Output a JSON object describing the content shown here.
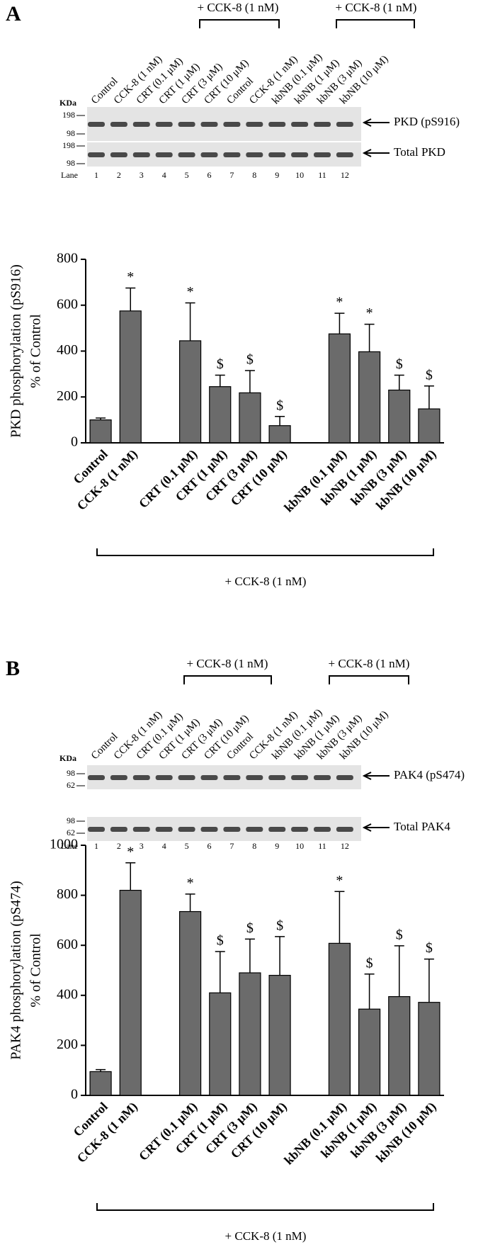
{
  "figure": {
    "panels": [
      {
        "label": "A",
        "blot": {
          "brackets": [
            "+ CCK-8 (1 nM)",
            "+ CCK-8 (1 nM)"
          ],
          "lanes": [
            "Control",
            "CCK-8 (1 nM)",
            "CRT (0.1 μM)",
            "CRT (1 μM)",
            "CRT (3 μM)",
            "CRT (10 μM)",
            "Control",
            "CCK-8 (1 nM)",
            "kbNB (0.1 μM)",
            "kbNB (1 μM)",
            "kbNB (3 μM)",
            "kbNB (10 μM)"
          ],
          "kda": "KDa",
          "rows": [
            {
              "label": "PKD (pS916)",
              "markers": [
                "198",
                "98"
              ]
            },
            {
              "label": "Total PKD",
              "markers": [
                "198",
                "98"
              ]
            }
          ],
          "lane_title": "Lane",
          "lane_numbers": [
            "1",
            "2",
            "3",
            "4",
            "5",
            "6",
            "7",
            "8",
            "9",
            "10",
            "11",
            "12"
          ]
        }
      },
      {
        "label": "B",
        "blot": {
          "brackets": [
            "+ CCK-8 (1 nM)",
            "+ CCK-8 (1 nM)"
          ],
          "lanes": [
            "Control",
            "CCK-8 (1 nM)",
            "CRT (0.1 μM)",
            "CRT (1 μM)",
            "CRT (3 μM)",
            "CRT (10 μM)",
            "Control",
            "CCK-8 (1 nM)",
            "kbNB (0.1 μM)",
            "kbNB (1 μM)",
            "kbNB (3 μM)",
            "kbNB (10 μM)"
          ],
          "kda": "KDa",
          "rows": [
            {
              "label": "PAK4 (pS474)",
              "markers": [
                "98",
                "62"
              ]
            },
            {
              "label": "Total PAK4",
              "markers": [
                "98",
                "62"
              ]
            }
          ],
          "lane_title": "Lane",
          "lane_numbers": [
            "1",
            "2",
            "3",
            "4",
            "5",
            "6",
            "7",
            "8",
            "9",
            "10",
            "11",
            "12"
          ]
        }
      }
    ]
  },
  "chart_data": [
    {
      "type": "bar",
      "y_label": [
        "PKD phosphorylation (pS916)",
        "% of Control"
      ],
      "categories": [
        "Control",
        "CCK-8 (1 nM)",
        null,
        "CRT (0.1 μM)",
        "CRT (1 μM)",
        "CRT (3 μM)",
        "CRT (10 μM)",
        null,
        "kbNB (0.1 μM)",
        "kbNB (1 μM)",
        "kbNB (3 μM)",
        "kbNB (10 μM)"
      ],
      "values": [
        100,
        575,
        null,
        445,
        245,
        218,
        75,
        null,
        475,
        397,
        230,
        148
      ],
      "errors": [
        8,
        100,
        null,
        165,
        50,
        97,
        40,
        null,
        90,
        120,
        65,
        100
      ],
      "annotations": [
        null,
        "*",
        null,
        "*",
        "$",
        "$",
        "$",
        null,
        "*",
        "*",
        "$",
        "$"
      ],
      "color": "#6b6b6b",
      "ylim": [
        0,
        800
      ],
      "yticks": [
        0,
        200,
        400,
        600,
        800
      ],
      "bracket_label": "+ CCK-8 (1 nM)"
    },
    {
      "type": "bar",
      "y_label": [
        "PAK4 phosphorylation (pS474)",
        "% of Control"
      ],
      "categories": [
        "Control",
        "CCK-8 (1 nM)",
        null,
        "CRT (0.1 μM)",
        "CRT (1 μM)",
        "CRT (3 μM)",
        "CRT (10 μM)",
        null,
        "kbNB (0.1 μM)",
        "kbNB (1 μM)",
        "kbNB (3 μM)",
        "kbNB (10 μM)"
      ],
      "values": [
        95,
        820,
        null,
        735,
        410,
        490,
        480,
        null,
        608,
        345,
        395,
        372
      ],
      "errors": [
        8,
        110,
        null,
        70,
        165,
        135,
        155,
        null,
        207,
        140,
        203,
        173
      ],
      "annotations": [
        null,
        "*",
        null,
        "*",
        "$",
        "$",
        "$",
        null,
        "*",
        "$",
        "$",
        "$"
      ],
      "color": "#6b6b6b",
      "ylim": [
        0,
        1000
      ],
      "yticks": [
        0,
        200,
        400,
        600,
        800,
        1000
      ],
      "bracket_label": "+ CCK-8 (1 nM)"
    }
  ]
}
